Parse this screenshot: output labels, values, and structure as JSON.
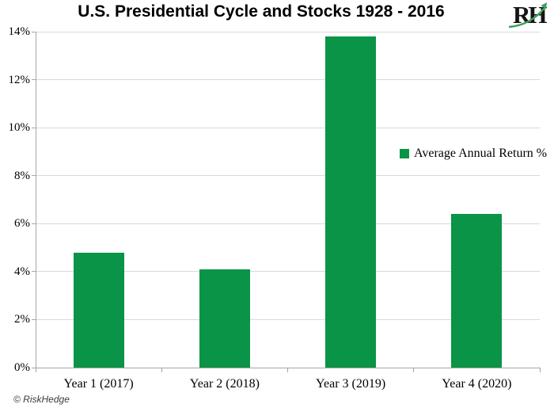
{
  "title": "U.S. Presidential Cycle and Stocks 1928 - 2016",
  "logo": {
    "text": "RH",
    "arrow_color": "#3ba15c"
  },
  "footer": {
    "credit": "© RiskHedge"
  },
  "legend": {
    "label": "Average Annual Return %"
  },
  "colors": {
    "bar": "#0a9447",
    "grid": "#d9d9d9",
    "axis": "#a6a6a6",
    "text": "#000000"
  },
  "chart_data": {
    "type": "bar",
    "title": "U.S. Presidential Cycle and Stocks 1928 - 2016",
    "categories": [
      "Year 1 (2017)",
      "Year 2 (2018)",
      "Year 3 (2019)",
      "Year 4 (2020)"
    ],
    "values": [
      4.8,
      4.1,
      13.8,
      6.4
    ],
    "series_name": "Average Annual Return %",
    "xlabel": "",
    "ylabel": "",
    "ylim": [
      0,
      14
    ],
    "ytick_step": 2,
    "ytick_labels": [
      "0%",
      "2%",
      "4%",
      "6%",
      "8%",
      "10%",
      "12%",
      "14%"
    ],
    "grid": true,
    "legend_position": "middle-right",
    "bar_color": "#0a9447"
  }
}
